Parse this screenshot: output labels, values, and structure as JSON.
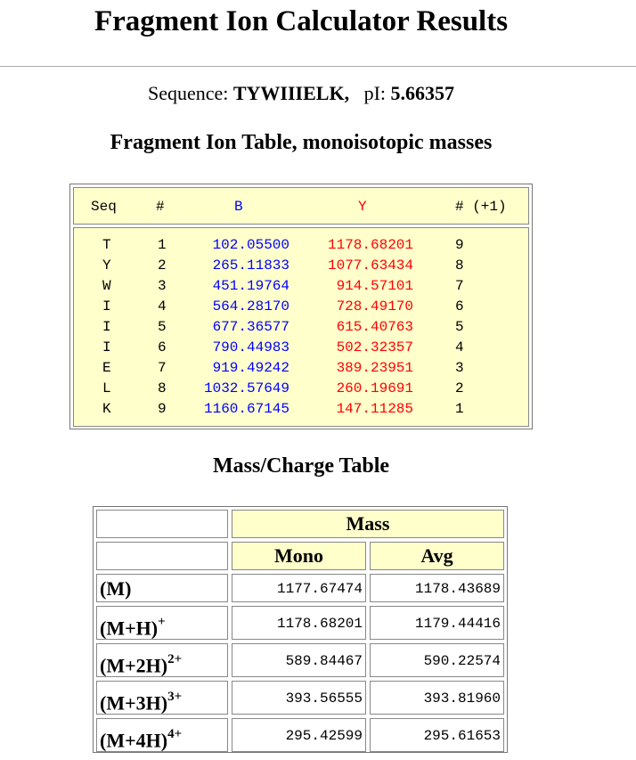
{
  "title": "Fragment Ion Calculator Results",
  "sequence_label": "Sequence:",
  "sequence": "TYWIIIELK,",
  "pi_label": "pI:",
  "pi_value": "5.66357",
  "fragment_table": {
    "title": "Fragment Ion Table, monoisotopic masses",
    "headers": {
      "seq": "Seq",
      "num": "#",
      "b": "B",
      "y": "Y",
      "num_plus": "# (+1)"
    },
    "rows": [
      {
        "seq": "T",
        "num": "1",
        "b": "102.05500",
        "y": "1178.68201",
        "num_plus": "9"
      },
      {
        "seq": "Y",
        "num": "2",
        "b": "265.11833",
        "y": "1077.63434",
        "num_plus": "8"
      },
      {
        "seq": "W",
        "num": "3",
        "b": "451.19764",
        "y": "914.57101",
        "num_plus": "7"
      },
      {
        "seq": "I",
        "num": "4",
        "b": "564.28170",
        "y": "728.49170",
        "num_plus": "6"
      },
      {
        "seq": "I",
        "num": "5",
        "b": "677.36577",
        "y": "615.40763",
        "num_plus": "5"
      },
      {
        "seq": "I",
        "num": "6",
        "b": "790.44983",
        "y": "502.32357",
        "num_plus": "4"
      },
      {
        "seq": "E",
        "num": "7",
        "b": "919.49242",
        "y": "389.23951",
        "num_plus": "3"
      },
      {
        "seq": "L",
        "num": "8",
        "b": "1032.57649",
        "y": "260.19691",
        "num_plus": "2"
      },
      {
        "seq": "K",
        "num": "9",
        "b": "1160.67145",
        "y": "147.11285",
        "num_plus": "1"
      }
    ]
  },
  "mass_charge_table": {
    "title": "Mass/Charge Table",
    "mass_header": "Mass",
    "mono_header": "Mono",
    "avg_header": "Avg",
    "rows": [
      {
        "label": "(M)",
        "charge": "",
        "mono": "1177.67474",
        "avg": "1178.43689"
      },
      {
        "label": "(M+H)",
        "charge": "+",
        "mono": "1178.68201",
        "avg": "1179.44416"
      },
      {
        "label": "(M+2H)",
        "charge": "2+",
        "mono": "589.84467",
        "avg": "590.22574"
      },
      {
        "label": "(M+3H)",
        "charge": "3+",
        "mono": "393.56555",
        "avg": "393.81960"
      },
      {
        "label": "(M+4H)",
        "charge": "4+",
        "mono": "295.42599",
        "avg": "295.61653"
      }
    ]
  },
  "colors": {
    "b_ions": "#0000ff",
    "y_ions": "#ff0000",
    "table_bg": "#ffffcc"
  }
}
